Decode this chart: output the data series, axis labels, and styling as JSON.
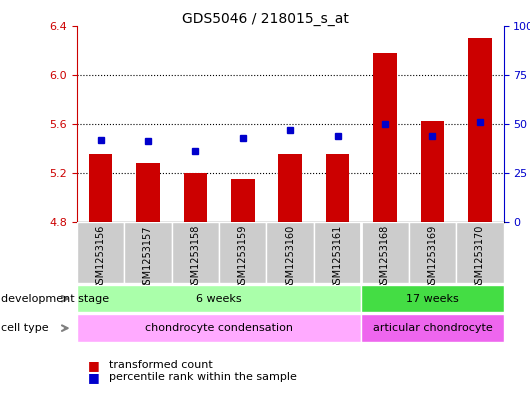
{
  "title": "GDS5046 / 218015_s_at",
  "samples": [
    "GSM1253156",
    "GSM1253157",
    "GSM1253158",
    "GSM1253159",
    "GSM1253160",
    "GSM1253161",
    "GSM1253168",
    "GSM1253169",
    "GSM1253170"
  ],
  "transformed_counts": [
    5.35,
    5.28,
    5.2,
    5.15,
    5.35,
    5.35,
    6.18,
    5.62,
    6.3
  ],
  "percentile_ranks": [
    42,
    41,
    36,
    43,
    47,
    44,
    50,
    44,
    51
  ],
  "ylim_left": [
    4.8,
    6.4
  ],
  "ylim_right": [
    0,
    100
  ],
  "yticks_left": [
    4.8,
    5.2,
    5.6,
    6.0,
    6.4
  ],
  "yticks_right": [
    0,
    25,
    50,
    75,
    100
  ],
  "bar_color": "#cc0000",
  "dot_color": "#0000cc",
  "bar_bottom": 4.8,
  "dev_stage_groups": [
    {
      "label": "6 weeks",
      "start": 0,
      "end": 6,
      "color": "#aaffaa"
    },
    {
      "label": "17 weeks",
      "start": 6,
      "end": 9,
      "color": "#44dd44"
    }
  ],
  "cell_type_groups": [
    {
      "label": "chondrocyte condensation",
      "start": 0,
      "end": 6,
      "color": "#ffaaff"
    },
    {
      "label": "articular chondrocyte",
      "start": 6,
      "end": 9,
      "color": "#ee66ee"
    }
  ],
  "legend_items": [
    {
      "color": "#cc0000",
      "label": "transformed count"
    },
    {
      "color": "#0000cc",
      "label": "percentile rank within the sample"
    }
  ],
  "dev_stage_label": "development stage",
  "cell_type_label": "cell type",
  "axis_color_left": "#cc0000",
  "axis_color_right": "#0000cc",
  "sample_box_color": "#cccccc",
  "plot_bg": "#ffffff"
}
